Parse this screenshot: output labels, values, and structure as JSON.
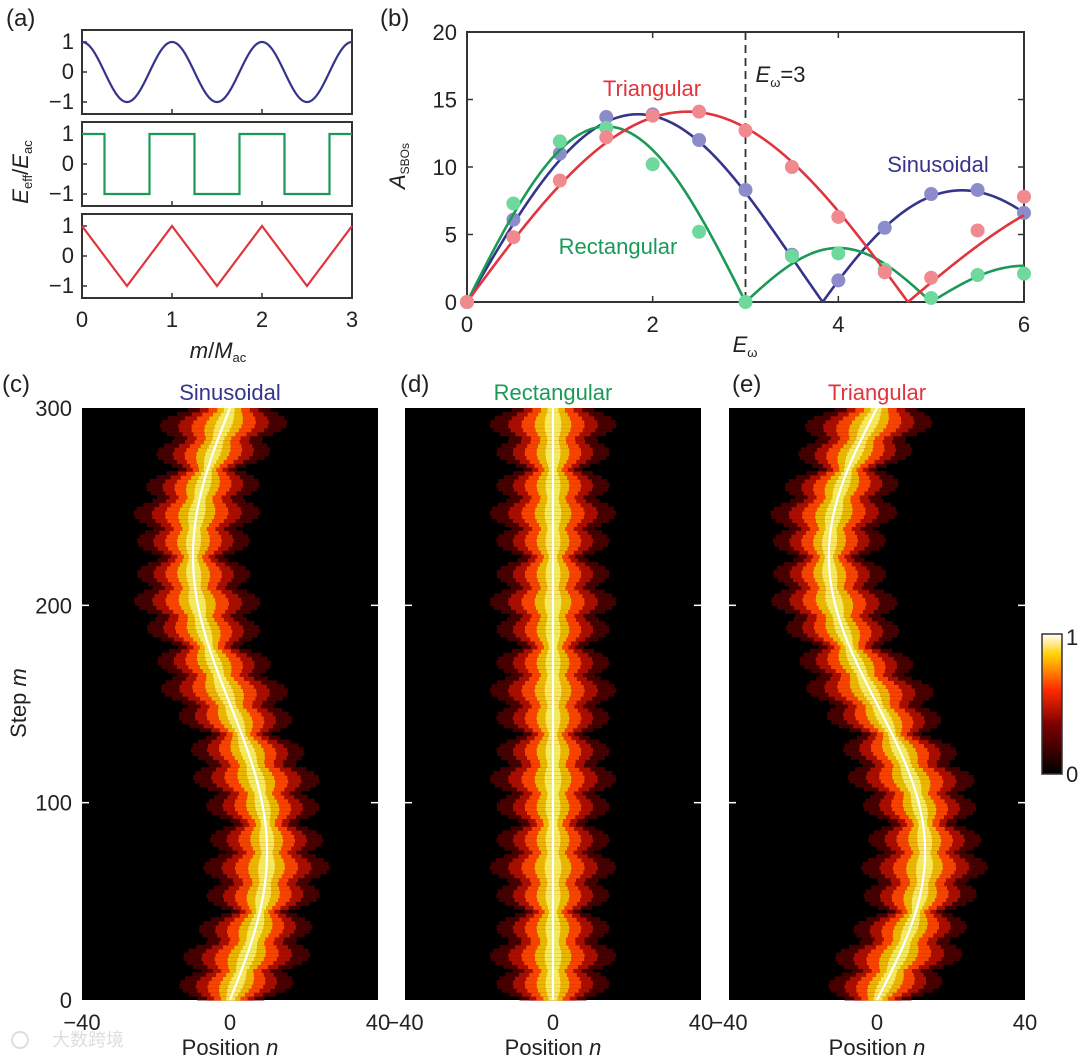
{
  "panel_labels": {
    "a": "(a)",
    "b": "(b)",
    "c": "(c)",
    "d": "(d)",
    "e": "(e)"
  },
  "colors": {
    "sinusoidal": "#34348c",
    "rectangular": "#1a9a56",
    "triangular": "#e0353d",
    "sinusoidal_marker": "#8c8ccc",
    "rectangular_marker": "#6fd89c",
    "triangular_marker": "#f08a8e"
  },
  "chart_data": [
    {
      "id": "a",
      "type": "line",
      "ylabel_parts": {
        "num": "E",
        "num_sub": "eff",
        "slash": "/",
        "den": "E",
        "den_sub": "ac"
      },
      "xlabel_parts": {
        "num": "m",
        "slash": "/",
        "den": "M",
        "den_sub": "ac"
      },
      "xlim": [
        0,
        3
      ],
      "x_ticks": [
        "0",
        "1",
        "2",
        "3"
      ],
      "subplots": [
        {
          "name": "sinusoidal",
          "function": "cos(2*pi*x)",
          "ylim": [
            -1.4,
            1.4
          ],
          "y_ticks": [
            "1",
            "0",
            "−1"
          ]
        },
        {
          "name": "rectangular",
          "function": "sign(cos(2*pi*x))",
          "ylim": [
            -1.4,
            1.4
          ],
          "y_ticks": [
            "1",
            "0",
            "−1"
          ]
        },
        {
          "name": "triangular",
          "function": "triangle wave, peak 1 at integer x, trough -1 at half-integer x",
          "ylim": [
            -1.4,
            1.4
          ],
          "y_ticks": [
            "1",
            "0",
            "−1"
          ]
        }
      ]
    },
    {
      "id": "b",
      "type": "line+scatter",
      "xlabel": "E",
      "xlabel_sub": "ω",
      "ylabel": "A",
      "ylabel_sub": "SBOs",
      "xlim": [
        0,
        6
      ],
      "ylim": [
        0,
        20
      ],
      "x_ticks": [
        "0",
        "2",
        "4",
        "6"
      ],
      "y_ticks": [
        "0",
        "5",
        "10",
        "15",
        "20"
      ],
      "annotation": {
        "text_main": "E",
        "text_sub": "ω",
        "text_tail": "=3",
        "x": 3
      },
      "series": [
        {
          "name": "Sinusoidal",
          "x": [
            0,
            0.5,
            1,
            1.5,
            2,
            2.5,
            3,
            3.5,
            4,
            4.5,
            5,
            5.5,
            6
          ],
          "values": [
            0,
            6.1,
            11.0,
            13.7,
            13.9,
            12.0,
            8.3,
            3.5,
            1.6,
            5.5,
            8.0,
            8.3,
            6.6
          ]
        },
        {
          "name": "Rectangular",
          "x": [
            0,
            0.5,
            1,
            1.5,
            2,
            2.5,
            3,
            3.5,
            4,
            4.5,
            5,
            5.5,
            6
          ],
          "values": [
            0,
            7.3,
            11.9,
            12.9,
            10.2,
            5.2,
            0,
            3.4,
            3.6,
            2.4,
            0.3,
            2.0,
            2.1
          ]
        },
        {
          "name": "Triangular",
          "x": [
            0,
            0.5,
            1,
            1.5,
            2,
            2.5,
            3,
            3.5,
            4,
            4.5,
            5,
            5.5,
            6
          ],
          "values": [
            0,
            4.8,
            9.0,
            12.2,
            13.8,
            14.1,
            12.7,
            10.0,
            6.3,
            2.2,
            1.8,
            5.3,
            7.8
          ]
        }
      ]
    },
    {
      "id": "c",
      "type": "heatmap",
      "title": "Sinusoidal",
      "title_color_key": "sinusoidal",
      "xlabel": "Position ",
      "xlabel_italic": "n",
      "ylabel": "Step ",
      "ylabel_italic": "m",
      "xlim": [
        -40,
        40
      ],
      "ylim": [
        0,
        300
      ],
      "x_ticks": [
        "−40",
        "0",
        "40"
      ],
      "y_ticks": [
        "0",
        "100",
        "200",
        "300"
      ],
      "trajectory": "x = 10*sin(2*pi*m/300)",
      "amplitude": 10,
      "mode": "sin"
    },
    {
      "id": "d",
      "type": "heatmap",
      "title": "Rectangular",
      "title_color_key": "rectangular",
      "xlabel": "Position ",
      "xlabel_italic": "n",
      "xlim": [
        -40,
        40
      ],
      "ylim": [
        0,
        300
      ],
      "x_ticks": [
        "−40",
        "0",
        "40"
      ],
      "trajectory": "x = 0",
      "amplitude": 0,
      "mode": "flat"
    },
    {
      "id": "e",
      "type": "heatmap",
      "title": "Triangular",
      "title_color_key": "triangular",
      "xlabel": "Position ",
      "xlabel_italic": "n",
      "xlim": [
        -40,
        40
      ],
      "ylim": [
        0,
        300
      ],
      "x_ticks": [
        "−40",
        "0",
        "40"
      ],
      "trajectory": "x = 13*sin(2*pi*m/300)",
      "amplitude": 13,
      "mode": "sin"
    },
    {
      "id": "colorbar",
      "type": "colorbar",
      "range": [
        0,
        1
      ],
      "ticks": [
        "1",
        "0"
      ]
    }
  ],
  "watermark": "大数跨境"
}
